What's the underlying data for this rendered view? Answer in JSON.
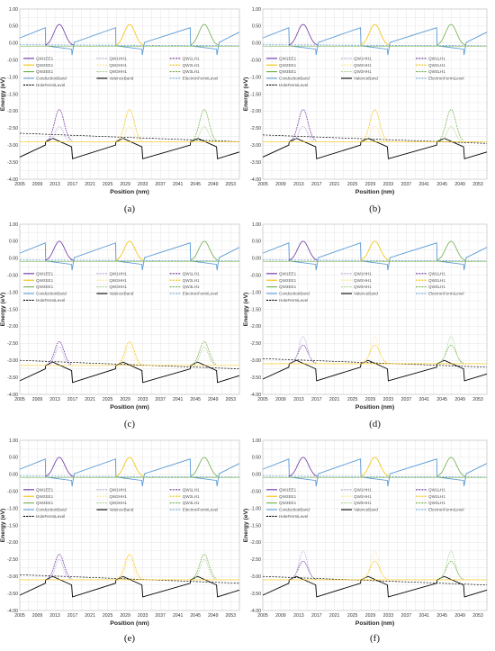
{
  "figure": {
    "xlabel": "Position (nm)",
    "ylabel": "Energy (eV)",
    "x_ticks": [
      "2005",
      "2009",
      "2013",
      "2017",
      "2021",
      "2025",
      "2029",
      "2033",
      "2037",
      "2041",
      "2045",
      "2049",
      "2053"
    ],
    "y_ticks": [
      "1.00",
      "0.50",
      "0.00",
      "-0.50",
      "-1.00",
      "-1.50",
      "-2.00",
      "-2.50",
      "-3.00",
      "-3.50",
      "-4.00"
    ],
    "legend": [
      {
        "label": "QW1EE1",
        "color": "#7030a0",
        "dash": "solid"
      },
      {
        "label": "QW1HH1",
        "color": "#b4a7d6",
        "dash": "dashed"
      },
      {
        "label": "QW1LH1",
        "color": "#7030a0",
        "dash": "dashed"
      },
      {
        "label": "QW2EE1",
        "color": "#f6c000",
        "dash": "solid"
      },
      {
        "label": "QW2HH1",
        "color": "#ffe699",
        "dash": "dashed"
      },
      {
        "label": "QW2LH1",
        "color": "#f6c000",
        "dash": "dashed"
      },
      {
        "label": "QW3EE1",
        "color": "#70ad47",
        "dash": "solid"
      },
      {
        "label": "QW3HH1",
        "color": "#a9d18e",
        "dash": "dashed"
      },
      {
        "label": "QW3LH1",
        "color": "#70ad47",
        "dash": "dashed"
      },
      {
        "label": "ConductionBand",
        "color": "#5b9bd5",
        "dash": "solid"
      },
      {
        "label": "ValenceBand",
        "color": "#000000",
        "dash": "solid"
      },
      {
        "label": "ElectronFermiLevel",
        "color": "#5b9bd5",
        "dash": "dashed"
      },
      {
        "label": "HoleFermiLevel",
        "color": "#000000",
        "dash": "dashed"
      }
    ]
  },
  "chart_data": [
    {
      "type": "line",
      "caption": "(a)",
      "xlim": [
        2005,
        2055
      ],
      "ylim": [
        -4.0,
        1.0
      ],
      "wells": [
        2014,
        2030,
        2047
      ],
      "ee_peak": 0.55,
      "lh_peak": -1.95,
      "hh_peak": -2.45,
      "hole_fermi": -2.65,
      "valence_top": -2.85
    },
    {
      "type": "line",
      "caption": "(b)",
      "xlim": [
        2005,
        2055
      ],
      "ylim": [
        -4.0,
        1.0
      ],
      "wells": [
        2014,
        2030,
        2047
      ],
      "ee_peak": 0.55,
      "lh_peak": -1.95,
      "hh_peak": -2.45,
      "hole_fermi": -2.7,
      "valence_top": -2.85
    },
    {
      "type": "line",
      "caption": "(c)",
      "xlim": [
        2005,
        2055
      ],
      "ylim": [
        -4.0,
        1.0
      ],
      "wells": [
        2014,
        2030,
        2047
      ],
      "ee_peak": 0.5,
      "lh_peak": -2.45,
      "hh_peak": -2.6,
      "hole_fermi": -3.0,
      "valence_top": -3.1
    },
    {
      "type": "line",
      "caption": "(d)",
      "xlim": [
        2005,
        2055
      ],
      "ylim": [
        -4.0,
        1.0
      ],
      "wells": [
        2014,
        2030,
        2047
      ],
      "ee_peak": 0.5,
      "lh_peak": -2.55,
      "hh_peak": -2.3,
      "hole_fermi": -2.95,
      "valence_top": -3.05
    },
    {
      "type": "line",
      "caption": "(e)",
      "xlim": [
        2005,
        2055
      ],
      "ylim": [
        -4.0,
        1.0
      ],
      "wells": [
        2014,
        2030,
        2047
      ],
      "ee_peak": 0.5,
      "lh_peak": -2.35,
      "hh_peak": -2.5,
      "hole_fermi": -2.95,
      "valence_top": -3.05
    },
    {
      "type": "line",
      "caption": "(f)",
      "xlim": [
        2005,
        2055
      ],
      "ylim": [
        -4.0,
        1.0
      ],
      "wells": [
        2014,
        2030,
        2047
      ],
      "ee_peak": 0.5,
      "lh_peak": -2.55,
      "hh_peak": -2.25,
      "hole_fermi": -3.0,
      "valence_top": -3.05
    }
  ]
}
